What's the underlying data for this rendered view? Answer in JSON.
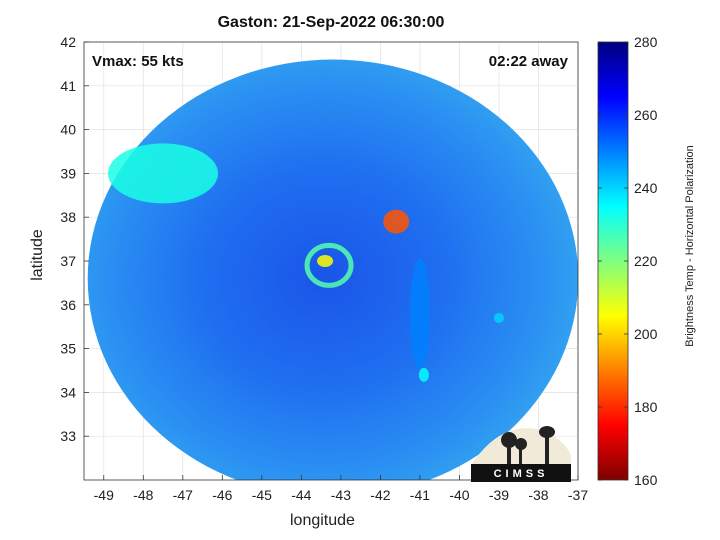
{
  "title": "Gaston: 21-Sep-2022 06:30:00",
  "vmax_label": "Vmax: 55 kts",
  "time_label": "02:22 away",
  "logo_text": "CIMSS",
  "chart_data": {
    "type": "heatmap",
    "title": "Gaston: 21-Sep-2022 06:30:00",
    "xlabel": "longitude",
    "ylabel": "latitude",
    "xlim": [
      -49.5,
      -37
    ],
    "ylim": [
      32,
      42
    ],
    "x_ticks": [
      -49,
      -48,
      -47,
      -46,
      -45,
      -44,
      -43,
      -42,
      -41,
      -40,
      -39,
      -38,
      -37
    ],
    "y_ticks": [
      33,
      34,
      35,
      36,
      37,
      38,
      39,
      40,
      41,
      42
    ],
    "grid": true,
    "colorbar": {
      "label": "Brightness Temp - Horizontal Polarization",
      "range": [
        160,
        280
      ],
      "ticks": [
        160,
        180,
        200,
        220,
        240,
        260,
        280
      ],
      "colormap": "jet"
    },
    "swath": {
      "center_lon": -43.2,
      "center_lat": 36.6,
      "radius_deg_lat": 5.0
    },
    "features": [
      {
        "name": "storm-center",
        "lon": -43.4,
        "lat": 37.0,
        "tb": 205
      },
      {
        "name": "eye-ring",
        "lon": -43.3,
        "lat": 36.9,
        "tb": 225
      },
      {
        "name": "northeast-convection",
        "lon": -41.6,
        "lat": 37.9,
        "tb": 185
      },
      {
        "name": "spiral-band",
        "lon": -41.0,
        "lat": 35.8,
        "tb": 250
      },
      {
        "name": "southern-cell",
        "lon": -40.9,
        "lat": 34.4,
        "tb": 235
      },
      {
        "name": "small-cell-east",
        "lon": -39.0,
        "lat": 35.7,
        "tb": 240
      },
      {
        "name": "northwest-warm-region",
        "lon": -47.5,
        "lat": 39.0,
        "tb": 232
      }
    ]
  }
}
